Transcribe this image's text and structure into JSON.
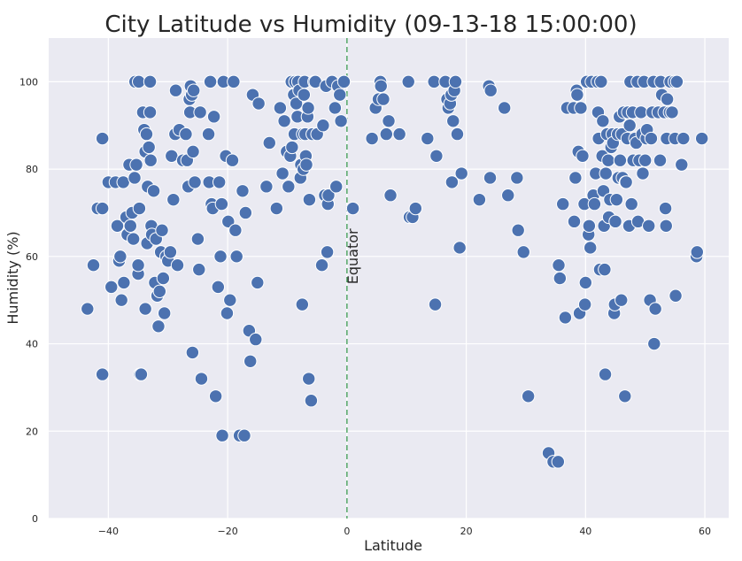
{
  "chart_data": {
    "type": "scatter",
    "title": "City Latitude vs Humidity (09-13-18 15:00:00)",
    "xlabel": "Latitude",
    "ylabel": "Humidity (%)",
    "xlim": [
      -50,
      64
    ],
    "ylim": [
      0,
      110
    ],
    "xticks": [
      -40,
      -20,
      0,
      20,
      40,
      60
    ],
    "yticks": [
      0,
      20,
      40,
      60,
      80,
      100
    ],
    "xtick_labels": [
      "−40",
      "−20",
      "0",
      "20",
      "40",
      "60"
    ],
    "ytick_labels": [
      "0",
      "20",
      "40",
      "60",
      "80",
      "100"
    ],
    "grid": true,
    "marker_color": "#4c72b0",
    "background_color": "#eaeaf2",
    "annotation": {
      "text": "Equator",
      "x": 0,
      "line_color": "#55a868",
      "line_style": "dashed"
    },
    "points": [
      [
        -43.5,
        48
      ],
      [
        -42.5,
        58
      ],
      [
        -41.8,
        71
      ],
      [
        -41,
        71
      ],
      [
        -41,
        87
      ],
      [
        -41,
        33
      ],
      [
        -40,
        77
      ],
      [
        -39.5,
        53
      ],
      [
        -38.8,
        77
      ],
      [
        -38.5,
        67
      ],
      [
        -38.2,
        59
      ],
      [
        -38,
        60
      ],
      [
        -37.8,
        50
      ],
      [
        -37.5,
        77
      ],
      [
        -37.4,
        54
      ],
      [
        -37,
        69
      ],
      [
        -36.8,
        65
      ],
      [
        -36.5,
        81
      ],
      [
        -36.3,
        67
      ],
      [
        -36,
        70
      ],
      [
        -35.8,
        64
      ],
      [
        -35.6,
        78
      ],
      [
        -35.5,
        100
      ],
      [
        -35.3,
        81
      ],
      [
        -35,
        56
      ],
      [
        -35,
        58
      ],
      [
        -34.9,
        100
      ],
      [
        -34.8,
        71
      ],
      [
        -34.7,
        33
      ],
      [
        -34.5,
        33
      ],
      [
        -34.2,
        93
      ],
      [
        -34,
        89
      ],
      [
        -33.8,
        84
      ],
      [
        -33.8,
        48
      ],
      [
        -33.6,
        88
      ],
      [
        -33.5,
        63
      ],
      [
        -33.4,
        76
      ],
      [
        -33.2,
        85
      ],
      [
        -33,
        93
      ],
      [
        -33,
        100
      ],
      [
        -32.9,
        82
      ],
      [
        -32.8,
        67
      ],
      [
        -32.7,
        65
      ],
      [
        -32.4,
        75
      ],
      [
        -32.2,
        54
      ],
      [
        -32,
        64
      ],
      [
        -31.8,
        51
      ],
      [
        -31.6,
        44
      ],
      [
        -31.4,
        52
      ],
      [
        -31.2,
        61
      ],
      [
        -31,
        66
      ],
      [
        -30.8,
        55
      ],
      [
        -30.6,
        47
      ],
      [
        -30.3,
        60
      ],
      [
        -30,
        59
      ],
      [
        -29.6,
        61
      ],
      [
        -29.4,
        83
      ],
      [
        -29.1,
        73
      ],
      [
        -28.8,
        88
      ],
      [
        -28.7,
        98
      ],
      [
        -28.4,
        58
      ],
      [
        -28.1,
        89
      ],
      [
        -27.5,
        82
      ],
      [
        -27,
        88
      ],
      [
        -26.8,
        82
      ],
      [
        -26.6,
        76
      ],
      [
        -26.4,
        96
      ],
      [
        -26.3,
        93
      ],
      [
        -26.2,
        99
      ],
      [
        -26,
        97
      ],
      [
        -25.9,
        38
      ],
      [
        -25.8,
        84
      ],
      [
        -25.7,
        98
      ],
      [
        -25.5,
        77
      ],
      [
        -25,
        64
      ],
      [
        -24.8,
        57
      ],
      [
        -24.6,
        93
      ],
      [
        -24.4,
        32
      ],
      [
        -23.2,
        88
      ],
      [
        -23.1,
        77
      ],
      [
        -22.9,
        100
      ],
      [
        -22.7,
        72
      ],
      [
        -22.5,
        71
      ],
      [
        -22.3,
        92
      ],
      [
        -22,
        28
      ],
      [
        -21.6,
        53
      ],
      [
        -21.4,
        77
      ],
      [
        -21.2,
        60
      ],
      [
        -21,
        72
      ],
      [
        -20.9,
        19
      ],
      [
        -20.7,
        100
      ],
      [
        -20.3,
        83
      ],
      [
        -20.1,
        47
      ],
      [
        -19.9,
        68
      ],
      [
        -19.6,
        50
      ],
      [
        -19.2,
        82
      ],
      [
        -19,
        100
      ],
      [
        -18.7,
        66
      ],
      [
        -18.5,
        60
      ],
      [
        -18,
        19
      ],
      [
        -17.5,
        75
      ],
      [
        -17.2,
        19
      ],
      [
        -17,
        70
      ],
      [
        -16.4,
        43
      ],
      [
        -16.2,
        36
      ],
      [
        -15.8,
        97
      ],
      [
        -15.3,
        41
      ],
      [
        -15,
        54
      ],
      [
        -14.8,
        95
      ],
      [
        -13.5,
        76
      ],
      [
        -13,
        86
      ],
      [
        -11.8,
        71
      ],
      [
        -11.2,
        94
      ],
      [
        -10.8,
        79
      ],
      [
        -10.5,
        91
      ],
      [
        -10.1,
        84
      ],
      [
        -9.8,
        76
      ],
      [
        -9.5,
        83
      ],
      [
        -9.3,
        100
      ],
      [
        -9.2,
        85
      ],
      [
        -8.9,
        97
      ],
      [
        -8.8,
        88
      ],
      [
        -8.7,
        100
      ],
      [
        -8.5,
        95
      ],
      [
        -8.3,
        92
      ],
      [
        -8.2,
        100
      ],
      [
        -8,
        98
      ],
      [
        -7.8,
        78
      ],
      [
        -7.7,
        81
      ],
      [
        -7.5,
        49
      ],
      [
        -7.4,
        88
      ],
      [
        -7.3,
        80
      ],
      [
        -7.2,
        97
      ],
      [
        -7.1,
        100
      ],
      [
        -7,
        88
      ],
      [
        -6.9,
        83
      ],
      [
        -6.8,
        81
      ],
      [
        -6.6,
        92
      ],
      [
        -6.5,
        94
      ],
      [
        -6.4,
        32
      ],
      [
        -6.3,
        73
      ],
      [
        -6,
        27
      ],
      [
        -5.8,
        88
      ],
      [
        -5.5,
        100
      ],
      [
        -5.3,
        100
      ],
      [
        -5,
        88
      ],
      [
        -4.2,
        58
      ],
      [
        -4,
        90
      ],
      [
        -3.7,
        74
      ],
      [
        -3.5,
        99
      ],
      [
        -3.3,
        61
      ],
      [
        -3.2,
        72
      ],
      [
        -3.1,
        74
      ],
      [
        -2.5,
        100
      ],
      [
        -2,
        94
      ],
      [
        -1.8,
        76
      ],
      [
        -1.5,
        99
      ],
      [
        -1.2,
        97
      ],
      [
        -1,
        91
      ],
      [
        -0.5,
        100
      ],
      [
        1,
        71
      ],
      [
        4.2,
        87
      ],
      [
        4.8,
        94
      ],
      [
        5.3,
        96
      ],
      [
        5.6,
        100
      ],
      [
        5.7,
        99
      ],
      [
        6.1,
        96
      ],
      [
        6.6,
        88
      ],
      [
        7,
        91
      ],
      [
        7.3,
        74
      ],
      [
        8.8,
        88
      ],
      [
        10.3,
        100
      ],
      [
        10.5,
        69
      ],
      [
        11,
        69
      ],
      [
        11.5,
        71
      ],
      [
        13.5,
        87
      ],
      [
        14.6,
        100
      ],
      [
        14.8,
        49
      ],
      [
        15,
        83
      ],
      [
        16.5,
        100
      ],
      [
        16.8,
        96
      ],
      [
        17,
        94
      ],
      [
        17.3,
        95
      ],
      [
        17.5,
        97
      ],
      [
        17.6,
        77
      ],
      [
        17.8,
        91
      ],
      [
        18,
        98
      ],
      [
        18.2,
        100
      ],
      [
        18.5,
        88
      ],
      [
        18.9,
        62
      ],
      [
        19.2,
        79
      ],
      [
        22.2,
        73
      ],
      [
        23.8,
        99
      ],
      [
        24,
        78
      ],
      [
        24.1,
        98
      ],
      [
        26.4,
        94
      ],
      [
        27,
        74
      ],
      [
        28.5,
        78
      ],
      [
        28.7,
        66
      ],
      [
        29.6,
        61
      ],
      [
        30.4,
        28
      ],
      [
        33.8,
        15
      ],
      [
        34.6,
        13
      ],
      [
        35.4,
        13
      ],
      [
        35.5,
        58
      ],
      [
        35.7,
        55
      ],
      [
        36.2,
        72
      ],
      [
        36.6,
        46
      ],
      [
        36.9,
        94
      ],
      [
        38,
        94
      ],
      [
        38.1,
        68
      ],
      [
        38.3,
        78
      ],
      [
        38.5,
        98
      ],
      [
        38.6,
        97
      ],
      [
        38.8,
        84
      ],
      [
        39,
        47
      ],
      [
        39.2,
        94
      ],
      [
        39.5,
        83
      ],
      [
        39.8,
        72
      ],
      [
        39.9,
        49
      ],
      [
        40,
        54
      ],
      [
        40.2,
        100
      ],
      [
        40.5,
        65
      ],
      [
        40.6,
        67
      ],
      [
        40.8,
        62
      ],
      [
        41,
        100
      ],
      [
        41.3,
        74
      ],
      [
        41.5,
        72
      ],
      [
        41.7,
        79
      ],
      [
        42,
        100
      ],
      [
        42.1,
        93
      ],
      [
        42.2,
        87
      ],
      [
        42.4,
        57
      ],
      [
        42.6,
        100
      ],
      [
        42.8,
        83
      ],
      [
        42.9,
        91
      ],
      [
        43,
        75
      ],
      [
        43.1,
        67
      ],
      [
        43.2,
        57
      ],
      [
        43.3,
        33
      ],
      [
        43.4,
        79
      ],
      [
        43.6,
        88
      ],
      [
        43.8,
        82
      ],
      [
        43.9,
        69
      ],
      [
        44.1,
        73
      ],
      [
        44.3,
        85
      ],
      [
        44.5,
        88
      ],
      [
        44.6,
        86
      ],
      [
        44.8,
        47
      ],
      [
        44.9,
        49
      ],
      [
        45,
        68
      ],
      [
        45.2,
        73
      ],
      [
        45.4,
        88
      ],
      [
        45.5,
        78
      ],
      [
        45.7,
        92
      ],
      [
        45.8,
        82
      ],
      [
        46,
        50
      ],
      [
        46.1,
        88
      ],
      [
        46.2,
        78
      ],
      [
        46.4,
        93
      ],
      [
        46.6,
        28
      ],
      [
        46.7,
        77
      ],
      [
        46.8,
        77
      ],
      [
        47,
        87
      ],
      [
        47.1,
        93
      ],
      [
        47.3,
        67
      ],
      [
        47.4,
        90
      ],
      [
        47.5,
        100
      ],
      [
        47.7,
        72
      ],
      [
        47.9,
        93
      ],
      [
        48,
        82
      ],
      [
        48.3,
        87
      ],
      [
        48.5,
        86
      ],
      [
        48.7,
        100
      ],
      [
        48.8,
        68
      ],
      [
        49,
        82
      ],
      [
        49.3,
        93
      ],
      [
        49.5,
        88
      ],
      [
        49.6,
        79
      ],
      [
        49.8,
        100
      ],
      [
        50,
        82
      ],
      [
        50.2,
        87
      ],
      [
        50.3,
        89
      ],
      [
        50.6,
        67
      ],
      [
        50.8,
        50
      ],
      [
        51,
        87
      ],
      [
        51.2,
        93
      ],
      [
        51.4,
        100
      ],
      [
        51.5,
        40
      ],
      [
        51.7,
        48
      ],
      [
        52.2,
        93
      ],
      [
        52.5,
        82
      ],
      [
        52.6,
        100
      ],
      [
        52.8,
        97
      ],
      [
        53.2,
        93
      ],
      [
        53.4,
        71
      ],
      [
        53.5,
        67
      ],
      [
        53.6,
        87
      ],
      [
        53.7,
        96
      ],
      [
        54.1,
        93
      ],
      [
        54.2,
        100
      ],
      [
        54.5,
        93
      ],
      [
        54.9,
        100
      ],
      [
        55,
        87
      ],
      [
        55.1,
        51
      ],
      [
        55.3,
        100
      ],
      [
        56.1,
        81
      ],
      [
        56.4,
        87
      ],
      [
        58.6,
        60
      ],
      [
        58.7,
        61
      ],
      [
        59.5,
        87
      ]
    ]
  }
}
